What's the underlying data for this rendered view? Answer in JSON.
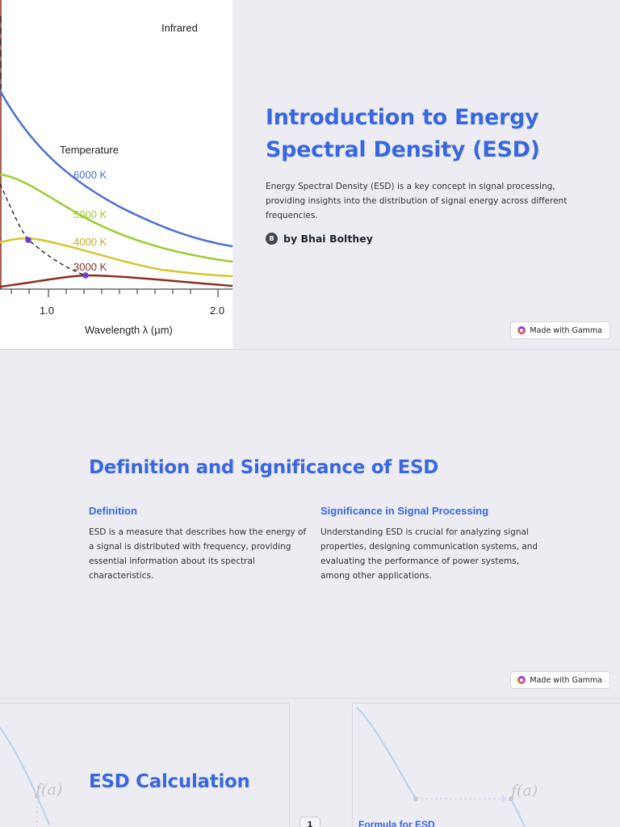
{
  "slide1": {
    "figure": {
      "region_label": "Infrared",
      "legend_title": "Temperature",
      "curve_labels": [
        "6000 K",
        "5000 K",
        "4000 K",
        "3000 K"
      ],
      "curve_colors": [
        "#4a6fd6",
        "#9ccc2c",
        "#d6c52a",
        "#8b2f22"
      ],
      "x_tick_labels": [
        "1.0",
        "2.0"
      ],
      "x_axis_label": "Wavelength λ (µm)"
    },
    "title": "Introduction to Energy Spectral Density (ESD)",
    "description": "Energy Spectral Density (ESD) is a key concept in signal processing, providing insights into the distribution of signal energy across different frequencies.",
    "author_initial": "B",
    "author": "by Bhai Bolthey",
    "badge": "Made with Gamma"
  },
  "slide2": {
    "title": "Definition and Significance of ESD",
    "columns": [
      {
        "heading": "Definition",
        "body": "ESD is a measure that describes how the energy of a signal is distributed with frequency, providing essential information about its spectral characteristics."
      },
      {
        "heading": "Significance in Signal Processing",
        "body": "Understanding ESD is crucial for analyzing signal properties, designing communication systems, and evaluating the performance of power systems, among other applications."
      }
    ],
    "badge": "Made with Gamma"
  },
  "slide3": {
    "title": "ESD Calculation",
    "bg_label_left": "f(a)",
    "bg_label_right": "f(a)",
    "step_number": "1",
    "step_title": "Formula for ESD"
  },
  "colors": {
    "accent": "#3867e0",
    "background": "#ececf2",
    "text": "#333333"
  }
}
